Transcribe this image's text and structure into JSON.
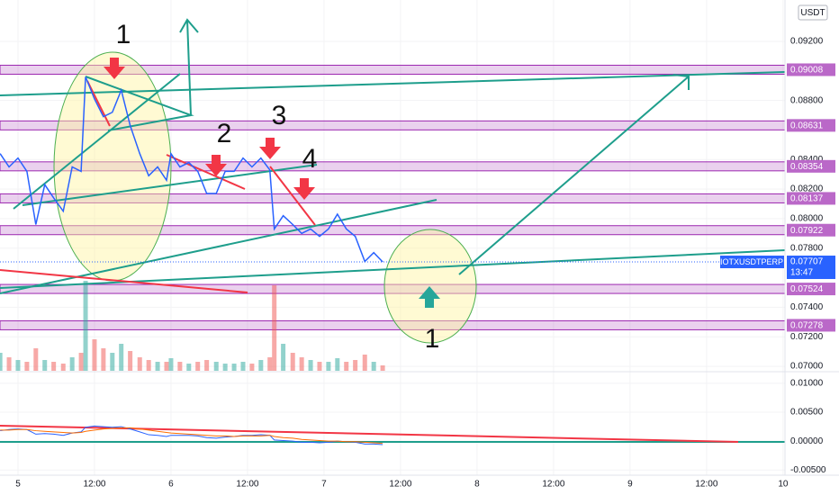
{
  "chart_data": {
    "type": "line",
    "symbol": "IOTXUSDTPERP",
    "axis_unit": "USDT",
    "countdown": "13:47",
    "last_price": 0.07707,
    "color": "#2962ff",
    "x": [
      -2.8,
      -1.4,
      0,
      1.4,
      2.8,
      4.2,
      5.6,
      7.1,
      8.5,
      9.9,
      10.6,
      12.0,
      13.4,
      14.8,
      16.2,
      17.6,
      19.1,
      20.5,
      21.9,
      23.3,
      24.0,
      25.4,
      26.8,
      28.2,
      29.6,
      31.1,
      32.5,
      33.9,
      35.3,
      36.7,
      38.1,
      39.5,
      40.2,
      41.6,
      43.1,
      44.5,
      45.9,
      47.3,
      48.7,
      50.1,
      51.5,
      52.9,
      54.4,
      55.8,
      57.2
    ],
    "values": [
      0.0844,
      0.0835,
      0.0841,
      0.0832,
      0.0796,
      0.0823,
      0.0814,
      0.0805,
      0.0835,
      0.0832,
      0.0896,
      0.0881,
      0.0869,
      0.0872,
      0.0887,
      0.0863,
      0.0844,
      0.0829,
      0.0835,
      0.0826,
      0.0844,
      0.0835,
      0.0838,
      0.0832,
      0.0817,
      0.0817,
      0.0832,
      0.0832,
      0.0841,
      0.0835,
      0.0841,
      0.0833,
      0.0793,
      0.0802,
      0.0796,
      0.079,
      0.0793,
      0.0788,
      0.0793,
      0.0803,
      0.0793,
      0.0788,
      0.0771,
      0.0777,
      0.07707
    ],
    "volume": [
      20,
      15,
      12,
      10,
      25,
      12,
      10,
      8,
      15,
      20,
      100,
      35,
      25,
      20,
      30,
      22,
      15,
      12,
      10,
      10,
      14,
      10,
      8,
      10,
      12,
      10,
      8,
      8,
      10,
      8,
      12,
      15,
      95,
      30,
      20,
      15,
      12,
      10,
      10,
      14,
      10,
      12,
      18,
      10,
      6
    ],
    "xlim": [
      -2.82,
      120.3
    ],
    "xticks": [
      {
        "value": 0,
        "label": "5"
      },
      {
        "value": 12,
        "label": "12:00"
      },
      {
        "value": 24,
        "label": "6"
      },
      {
        "value": 36,
        "label": "12:00"
      },
      {
        "value": 48,
        "label": "7"
      },
      {
        "value": 60,
        "label": "12:00"
      },
      {
        "value": 72,
        "label": "8"
      },
      {
        "value": 84,
        "label": "12:00"
      },
      {
        "value": 96,
        "label": "9"
      },
      {
        "value": 108,
        "label": "12:00"
      },
      {
        "value": 120,
        "label": "10"
      }
    ],
    "ylim": [
      0.0697,
      0.0948
    ],
    "yticks": [
      {
        "value": 0.092,
        "label": "0.09200"
      },
      {
        "value": 0.088,
        "label": "0.08800"
      },
      {
        "value": 0.084,
        "label": "0.08400"
      },
      {
        "value": 0.082,
        "label": "0.08200"
      },
      {
        "value": 0.08,
        "label": "0.08000"
      },
      {
        "value": 0.078,
        "label": "0.07800"
      },
      {
        "value": 0.074,
        "label": "0.07400"
      },
      {
        "value": 0.072,
        "label": "0.07200"
      },
      {
        "value": 0.07,
        "label": "0.07000"
      }
    ],
    "levels": [
      0.09008,
      0.08631,
      0.08354,
      0.08137,
      0.07922,
      0.07524,
      0.07278
    ],
    "macd": {
      "series": [
        {
          "color": "#2962ff",
          "values": [
            0.0018,
            0.002,
            0.0021,
            0.002,
            0.0012,
            0.0013,
            0.0012,
            0.001,
            0.0014,
            0.0016,
            0.0024,
            0.0026,
            0.0025,
            0.0024,
            0.0025,
            0.0021,
            0.0016,
            0.0011,
            0.001,
            0.0008,
            0.001,
            0.001,
            0.001,
            0.0009,
            0.0006,
            0.0005,
            0.0007,
            0.0008,
            0.001,
            0.001,
            0.0011,
            0.001,
            0.0002,
            0.0001,
            0.0,
            -0.0002,
            -0.0002,
            -0.0003,
            -0.0002,
            0.0,
            -0.0001,
            -0.0002,
            -0.0005,
            -0.0005,
            -0.0006
          ]
        },
        {
          "color": "#ff6d00",
          "values": [
            0.0019,
            0.0019,
            0.002,
            0.002,
            0.0018,
            0.0017,
            0.0016,
            0.0015,
            0.0014,
            0.0015,
            0.0017,
            0.0019,
            0.0021,
            0.0022,
            0.0023,
            0.0023,
            0.0021,
            0.0019,
            0.0017,
            0.0015,
            0.0014,
            0.0013,
            0.0012,
            0.0011,
            0.001,
            0.0009,
            0.0009,
            0.0008,
            0.0009,
            0.0009,
            0.0009,
            0.001,
            0.0008,
            0.0006,
            0.0005,
            0.0003,
            0.0002,
            0.0001,
            0.0,
            0.0,
            -0.0001,
            -0.0001,
            -0.0002,
            -0.0003,
            -0.0004
          ]
        }
      ],
      "ylim": [
        -0.0059,
        0.0117
      ],
      "yticks": [
        {
          "value": 0.01,
          "label": "0.01000"
        },
        {
          "value": 0.005,
          "label": "0.00500"
        },
        {
          "value": 0,
          "label": "0.00000"
        },
        {
          "value": -0.005,
          "label": "-0.00500"
        }
      ]
    },
    "annotations": [
      "1",
      "2",
      "3",
      "4",
      "1"
    ]
  }
}
